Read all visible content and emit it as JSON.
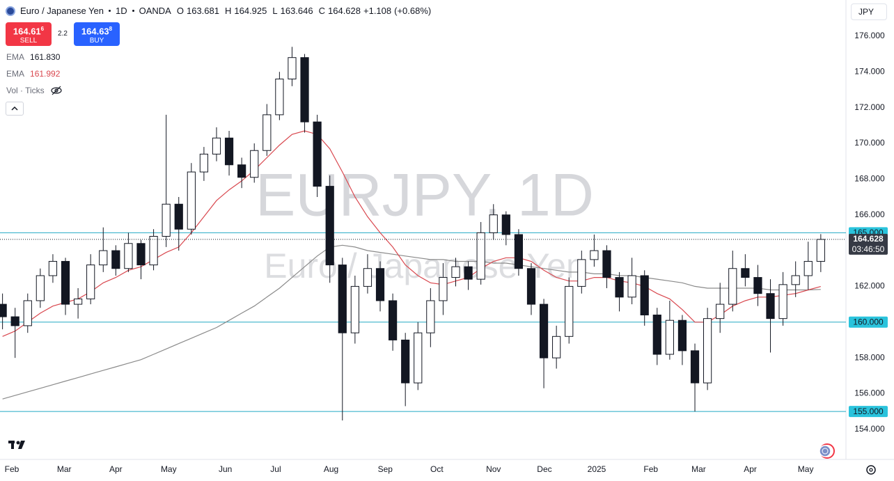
{
  "header": {
    "symbol_name": "Euro / Japanese Yen",
    "interval": "1D",
    "exchange": "OANDA",
    "open_label": "O",
    "open": 163.681,
    "high_label": "H",
    "high": 164.925,
    "low_label": "L",
    "low": 163.646,
    "close_label": "C",
    "close": 164.628,
    "change": "+1.108",
    "change_pct": "(+0.68%)",
    "sell": {
      "price": "164.61",
      "pipette": "6",
      "label": "SELL"
    },
    "buy": {
      "price": "164.63",
      "pipette": "8",
      "label": "BUY"
    },
    "spread": "2.2",
    "currency": "JPY",
    "volume_label": "Vol · Ticks"
  },
  "chart_data": {
    "type": "candlestick",
    "candles": [
      [
        161.0,
        161.6,
        159.6,
        160.3
      ],
      [
        160.3,
        160.8,
        158.0,
        159.8
      ],
      [
        159.8,
        161.6,
        159.4,
        161.2
      ],
      [
        161.2,
        163.0,
        160.8,
        162.6
      ],
      [
        162.6,
        163.8,
        162.2,
        163.4
      ],
      [
        163.4,
        163.6,
        160.4,
        161.0
      ],
      [
        161.0,
        161.9,
        160.2,
        161.3
      ],
      [
        161.3,
        163.8,
        161.0,
        163.2
      ],
      [
        163.2,
        165.3,
        162.8,
        164.0
      ],
      [
        164.0,
        164.3,
        162.6,
        163.0
      ],
      [
        163.0,
        165.0,
        162.8,
        164.4
      ],
      [
        164.4,
        164.6,
        162.4,
        163.2
      ],
      [
        163.2,
        165.2,
        162.9,
        164.8
      ],
      [
        164.8,
        171.6,
        164.2,
        166.6
      ],
      [
        166.6,
        167.0,
        164.0,
        165.2
      ],
      [
        165.2,
        168.9,
        164.9,
        168.4
      ],
      [
        168.4,
        169.8,
        167.9,
        169.4
      ],
      [
        169.4,
        170.9,
        169.0,
        170.3
      ],
      [
        170.3,
        170.7,
        168.2,
        168.8
      ],
      [
        168.8,
        169.2,
        167.5,
        168.1
      ],
      [
        168.1,
        170.0,
        167.8,
        169.6
      ],
      [
        169.6,
        172.2,
        169.3,
        171.6
      ],
      [
        171.6,
        174.0,
        171.3,
        173.6
      ],
      [
        173.6,
        175.4,
        173.2,
        174.8
      ],
      [
        174.8,
        175.0,
        170.6,
        171.2
      ],
      [
        171.2,
        171.6,
        167.0,
        167.6
      ],
      [
        167.6,
        168.2,
        162.2,
        163.2
      ],
      [
        163.2,
        163.6,
        154.5,
        159.4
      ],
      [
        159.4,
        162.6,
        158.8,
        162.0
      ],
      [
        162.0,
        163.8,
        161.6,
        163.0
      ],
      [
        163.0,
        163.4,
        160.6,
        161.2
      ],
      [
        161.2,
        161.6,
        158.4,
        159.0
      ],
      [
        159.0,
        159.4,
        155.3,
        156.6
      ],
      [
        156.6,
        160.0,
        156.2,
        159.4
      ],
      [
        159.4,
        161.9,
        158.6,
        161.2
      ],
      [
        161.2,
        163.3,
        160.4,
        162.5
      ],
      [
        162.5,
        163.6,
        162.0,
        163.1
      ],
      [
        163.1,
        163.4,
        161.8,
        162.4
      ],
      [
        162.4,
        165.6,
        162.1,
        165.0
      ],
      [
        165.0,
        166.6,
        164.6,
        166.0
      ],
      [
        166.0,
        166.2,
        164.3,
        164.9
      ],
      [
        164.9,
        165.2,
        162.6,
        163.0
      ],
      [
        163.0,
        163.3,
        160.4,
        161.0
      ],
      [
        161.0,
        161.3,
        156.3,
        158.0
      ],
      [
        158.0,
        159.8,
        157.4,
        159.2
      ],
      [
        159.2,
        162.5,
        158.8,
        162.0
      ],
      [
        162.0,
        164.0,
        161.6,
        163.5
      ],
      [
        163.5,
        164.9,
        163.1,
        164.0
      ],
      [
        164.0,
        164.3,
        161.9,
        162.5
      ],
      [
        162.5,
        162.8,
        160.6,
        161.4
      ],
      [
        161.4,
        163.6,
        161.0,
        162.6
      ],
      [
        162.6,
        162.9,
        159.8,
        160.4
      ],
      [
        160.4,
        160.8,
        157.6,
        158.2
      ],
      [
        158.2,
        161.2,
        157.9,
        160.1
      ],
      [
        160.1,
        160.4,
        157.6,
        158.4
      ],
      [
        158.4,
        158.8,
        155.0,
        156.6
      ],
      [
        156.6,
        160.8,
        156.2,
        160.2
      ],
      [
        160.2,
        162.2,
        159.4,
        161.0
      ],
      [
        161.0,
        164.0,
        160.6,
        163.0
      ],
      [
        163.0,
        163.8,
        162.0,
        162.5
      ],
      [
        162.5,
        163.2,
        160.9,
        161.6
      ],
      [
        161.6,
        162.4,
        158.3,
        160.2
      ],
      [
        160.2,
        162.8,
        159.8,
        162.1
      ],
      [
        162.1,
        163.4,
        161.4,
        162.6
      ],
      [
        162.6,
        164.5,
        161.8,
        163.4
      ],
      [
        163.4,
        164.925,
        162.8,
        164.628
      ]
    ],
    "candle_colors": {
      "up": "#ffffff",
      "down": "#131722",
      "outline": "#131722"
    },
    "lines": [
      {
        "name": "EMA",
        "legend_value": "161.830",
        "color": "#8a8a8a",
        "values": [
          155.7,
          155.9,
          156.1,
          156.3,
          156.5,
          156.7,
          156.9,
          157.1,
          157.3,
          157.5,
          157.7,
          157.9,
          158.2,
          158.5,
          158.8,
          159.1,
          159.4,
          159.7,
          160.1,
          160.5,
          160.9,
          161.4,
          161.9,
          162.5,
          163.1,
          163.7,
          164.2,
          164.3,
          164.2,
          164.0,
          163.9,
          163.8,
          163.7,
          163.6,
          163.5,
          163.5,
          163.4,
          163.4,
          163.4,
          163.3,
          163.3,
          163.2,
          163.1,
          163.0,
          162.9,
          162.8,
          162.8,
          162.7,
          162.7,
          162.6,
          162.6,
          162.5,
          162.4,
          162.3,
          162.2,
          162.0,
          161.9,
          161.9,
          161.9,
          161.9,
          161.9,
          161.8,
          161.8,
          161.8,
          161.8,
          161.83
        ]
      },
      {
        "name": "EMA",
        "legend_value": "161.992",
        "color": "#d9484f",
        "values": [
          159.2,
          159.5,
          160.0,
          160.5,
          160.9,
          161.1,
          161.3,
          161.7,
          162.2,
          162.5,
          162.9,
          163.1,
          163.5,
          163.9,
          164.2,
          165.0,
          165.9,
          166.8,
          167.4,
          167.9,
          168.5,
          169.2,
          169.9,
          170.5,
          170.7,
          170.5,
          169.7,
          168.4,
          167.0,
          165.9,
          165.0,
          164.2,
          163.2,
          162.6,
          162.2,
          162.1,
          162.3,
          162.5,
          163.0,
          163.4,
          163.6,
          163.6,
          163.4,
          162.9,
          162.5,
          162.3,
          162.3,
          162.5,
          162.5,
          162.3,
          162.2,
          162.0,
          161.6,
          161.3,
          160.7,
          160.0,
          160.0,
          160.4,
          160.9,
          161.2,
          161.4,
          161.4,
          161.5,
          161.6,
          161.8,
          161.992
        ]
      }
    ],
    "xlim": [
      -0.2,
      67
    ],
    "xticks": [
      {
        "value": 0.74,
        "label": "Feb"
      },
      {
        "value": 4.9,
        "label": "Mar"
      },
      {
        "value": 9.0,
        "label": "Apr"
      },
      {
        "value": 13.2,
        "label": "May"
      },
      {
        "value": 17.7,
        "label": "Jun"
      },
      {
        "value": 21.7,
        "label": "Jul"
      },
      {
        "value": 26.1,
        "label": "Aug"
      },
      {
        "value": 30.4,
        "label": "Sep"
      },
      {
        "value": 34.5,
        "label": "Oct"
      },
      {
        "value": 39.0,
        "label": "Nov"
      },
      {
        "value": 43.05,
        "label": "Dec"
      },
      {
        "value": 47.2,
        "label": "2025"
      },
      {
        "value": 51.5,
        "label": "Feb"
      },
      {
        "value": 55.3,
        "label": "Mar"
      },
      {
        "value": 59.4,
        "label": "Apr"
      },
      {
        "value": 63.8,
        "label": "May"
      }
    ],
    "ylim": [
      152.32,
      178.02
    ],
    "yticks": [
      {
        "value": 154,
        "label": "154.000"
      },
      {
        "value": 156,
        "label": "156.000"
      },
      {
        "value": 158,
        "label": "158.000"
      },
      {
        "value": 160,
        "label": "160.000"
      },
      {
        "value": 162,
        "label": "162.000"
      },
      {
        "value": 164,
        "label": "164.000"
      },
      {
        "value": 166,
        "label": "166.000"
      },
      {
        "value": 168,
        "label": "168.000"
      },
      {
        "value": 170,
        "label": "170.000"
      },
      {
        "value": 172,
        "label": "172.000"
      },
      {
        "value": 174,
        "label": "174.000"
      },
      {
        "value": 176,
        "label": "176.000"
      }
    ],
    "grid": false,
    "levels": [
      {
        "value": 165,
        "label": "165.000"
      },
      {
        "value": 160,
        "label": "160.000"
      },
      {
        "value": 155,
        "label": "155.000"
      }
    ],
    "level_color": "#22a9c4",
    "level_label_color": "#2ac3dc",
    "last_price": {
      "value": 164.628,
      "label": "164.628",
      "countdown": "03:46:50",
      "color": "#363a45"
    },
    "watermark": {
      "symbol": "EURJPY, 1D",
      "name": "Euro / Japanese Yen"
    }
  }
}
